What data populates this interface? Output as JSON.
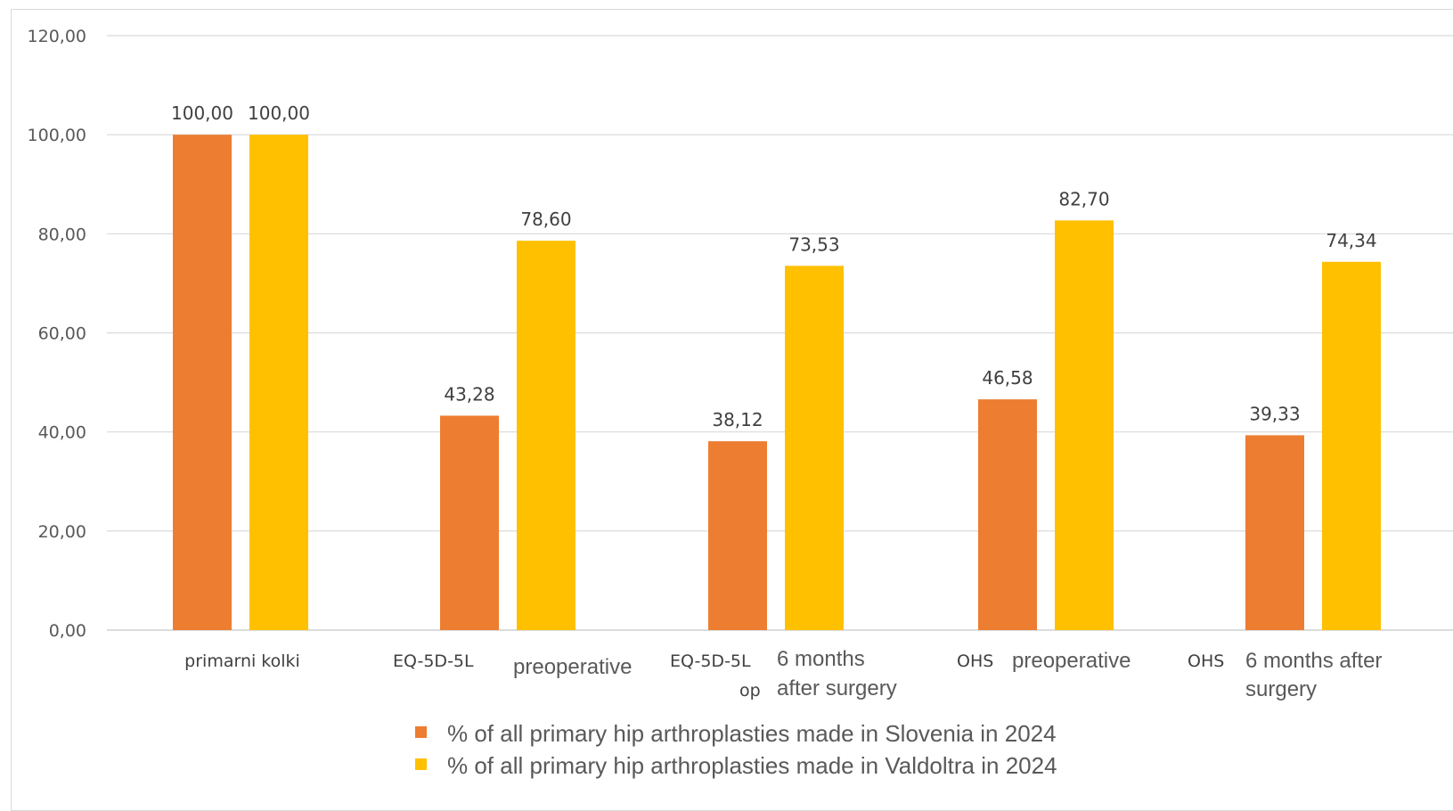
{
  "chart_data": {
    "type": "bar",
    "ylim": [
      0,
      120
    ],
    "yticks": [
      "0,00",
      "20,00",
      "40,00",
      "60,00",
      "80,00",
      "100,00",
      "120,00"
    ],
    "ytick_values": [
      0,
      20,
      40,
      60,
      80,
      100,
      120
    ],
    "grid": true,
    "legend_position": "bottom",
    "categories": [
      {
        "lines": [
          "primarni kolki"
        ]
      },
      {
        "lines": [
          "EQ-5D-5L"
        ],
        "sublines": [
          "preoperative"
        ]
      },
      {
        "lines": [
          "EQ-5D-5L",
          "op"
        ],
        "sublines": [
          "6 months",
          "after surgery"
        ]
      },
      {
        "lines": [
          "OHS"
        ],
        "sublines": [
          "preoperative"
        ]
      },
      {
        "lines": [
          "OHS"
        ],
        "sublines": [
          "6 months after",
          "surgery"
        ]
      }
    ],
    "series": [
      {
        "name": "% of all primary hip arthroplasties made in Slovenia in 2024",
        "color": "#ED7D31",
        "values": [
          100.0,
          43.28,
          38.12,
          46.58,
          39.33
        ],
        "labels": [
          "100,00",
          "43,28",
          "38,12",
          "46,58",
          "39,33"
        ]
      },
      {
        "name": "% of all primary hip arthroplasties made in Valdoltra in 2024",
        "color": "#FFC000",
        "values": [
          100.0,
          78.6,
          73.53,
          82.7,
          74.34
        ],
        "labels": [
          "100,00",
          "78,60",
          "73,53",
          "82,70",
          "74,34"
        ]
      }
    ],
    "title": "",
    "xlabel": "",
    "ylabel": ""
  }
}
